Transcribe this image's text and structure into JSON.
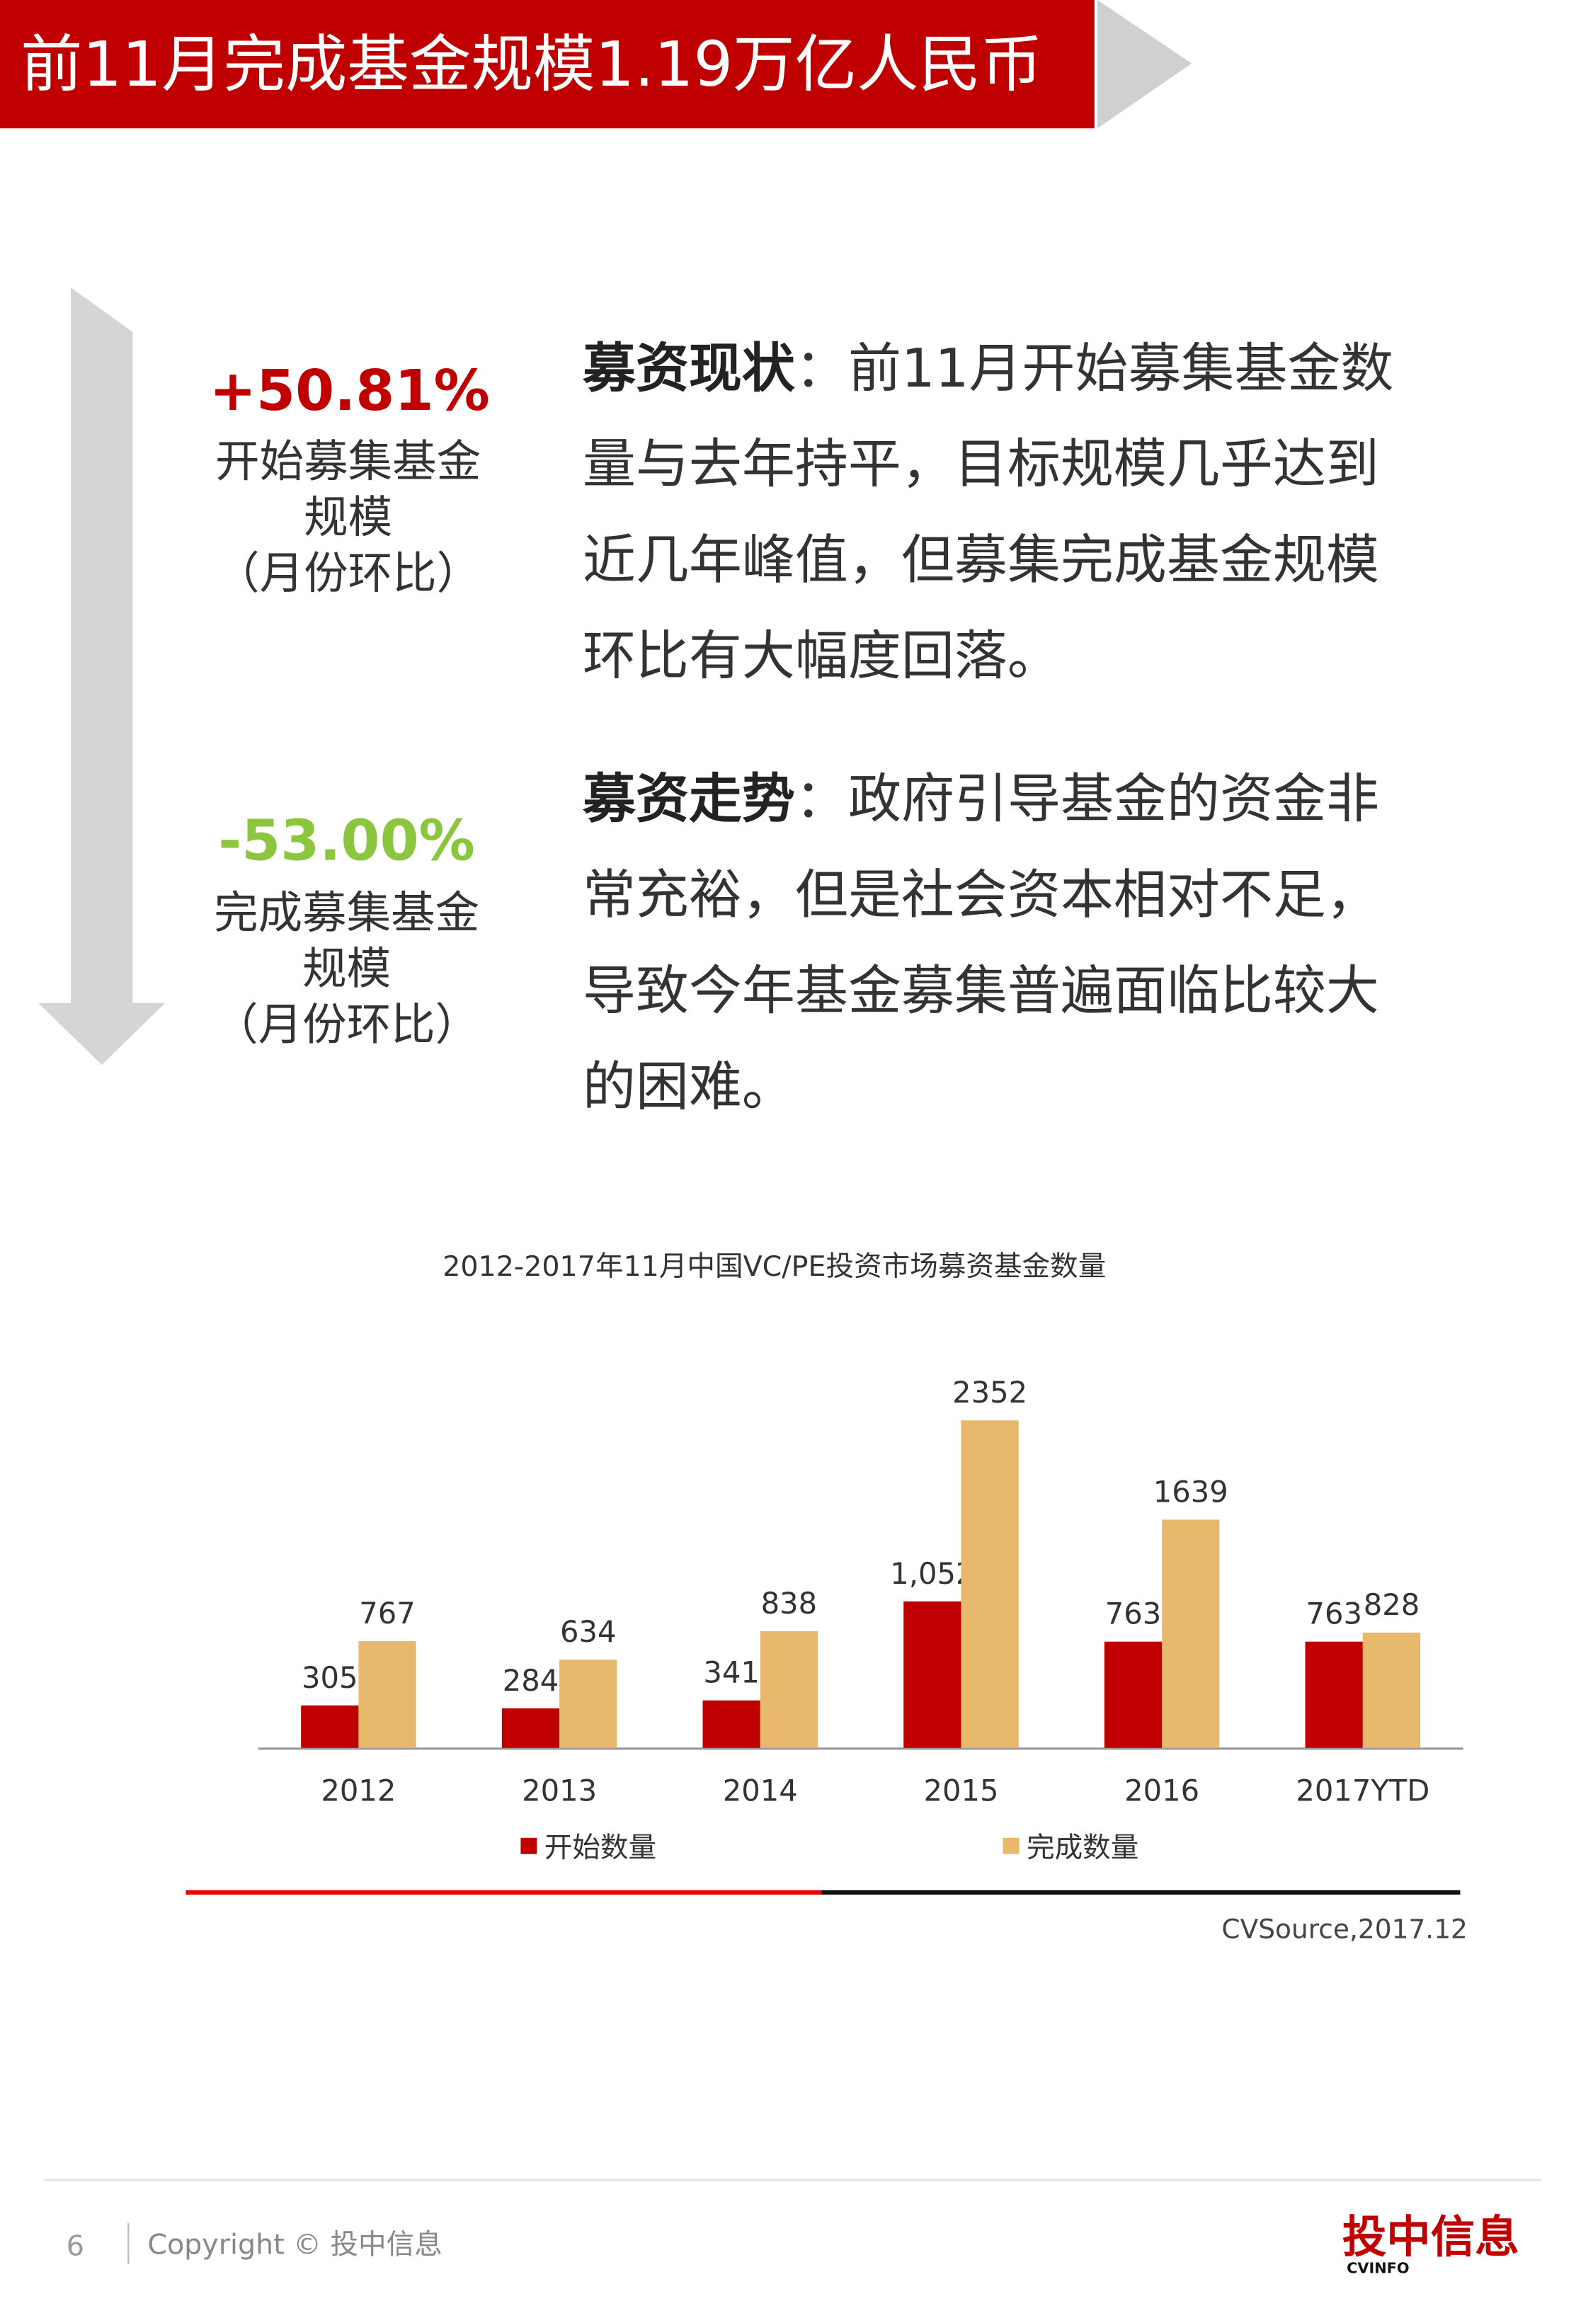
{
  "header": {
    "title": "前11月完成基金规模1.19万亿人民币"
  },
  "stats": [
    {
      "value": "+50.81%",
      "label": "开始募集基金规模",
      "note": "（月份环比）"
    },
    {
      "value": "-53.00%",
      "label": "完成募集基金规模",
      "note": "（月份环比）"
    }
  ],
  "paragraphs": [
    {
      "lead": "募资现状",
      "text": "：前11月开始募集基金数量与去年持平，目标规模几乎达到近几年峰值，但募集完成基金规模环比有大幅度回落。"
    },
    {
      "lead": "募资走势",
      "text": "：政府引导基金的资金非常充裕，但是社会资本相对不足，导致今年基金募集普遍面临比较大的困难。"
    }
  ],
  "chart_data": {
    "type": "bar",
    "title": "2012-2017年11月中国VC/PE投资市场募资基金数量",
    "categories": [
      "2012",
      "2013",
      "2014",
      "2015",
      "2016",
      "2017YTD"
    ],
    "series": [
      {
        "name": "开始数量",
        "color": "#c00000",
        "values": [
          305,
          284,
          341,
          1052,
          763,
          763
        ],
        "value_labels": [
          "305",
          "284",
          "341",
          "1,052",
          "763",
          "763"
        ]
      },
      {
        "name": "完成数量",
        "color": "#e8b86d",
        "values": [
          767,
          634,
          838,
          2352,
          1639,
          828
        ]
      }
    ]
  },
  "source": "CVSource,2017.12",
  "footer": {
    "page": "6",
    "copyright": "Copyright © 投中信息",
    "logo": "投中信息",
    "logo_sub": "CVINFO"
  }
}
